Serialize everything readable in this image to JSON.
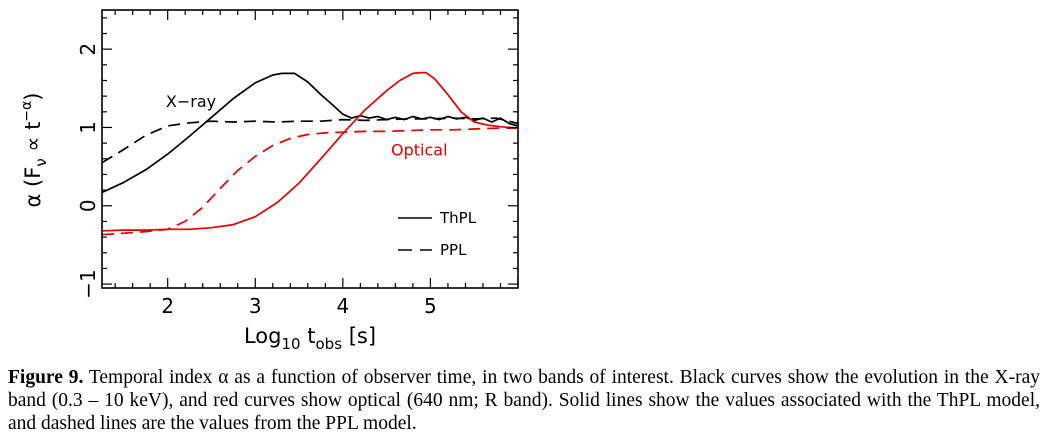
{
  "chart_data": {
    "type": "line",
    "xlabel_parts": {
      "pre": "Log",
      "sub1": "10",
      "mid": " t",
      "sub2": "obs",
      "post": " [s]"
    },
    "ylabel_parts": {
      "pre": "α (F",
      "sub": "ν",
      "mid": " ∝ t",
      "sup": "−α",
      "post": ")"
    },
    "xlim": [
      1.25,
      6.0
    ],
    "ylim": [
      -1.05,
      2.5
    ],
    "x_ticks": [
      2,
      3,
      4,
      5
    ],
    "y_ticks": [
      -1,
      0,
      1,
      2
    ],
    "x_tick_labels": [
      "2",
      "3",
      "4",
      "5"
    ],
    "y_tick_labels": [
      "−1",
      "0",
      "1",
      "2"
    ],
    "grid": false,
    "legend": {
      "placement": "lower-right",
      "entries": [
        {
          "label": "ThPL",
          "style": "solid"
        },
        {
          "label": "PPL",
          "style": "dashed"
        }
      ]
    },
    "annotations": [
      {
        "text": "X−ray",
        "color": "#000000",
        "x": 1.98,
        "y": 1.26
      },
      {
        "text": "Optical",
        "color": "#e00000",
        "x": 4.55,
        "y": 0.64
      }
    ],
    "series": [
      {
        "band": "X-ray",
        "model": "ThPL",
        "color": "#000000",
        "dash": "solid",
        "x": [
          1.25,
          1.5,
          1.75,
          2.0,
          2.25,
          2.5,
          2.75,
          3.0,
          3.2,
          3.3,
          3.45,
          3.6,
          3.75,
          3.9,
          4.0,
          4.1,
          4.2,
          4.3,
          4.4,
          4.5,
          4.6,
          4.7,
          4.8,
          4.9,
          5.0,
          5.1,
          5.2,
          5.3,
          5.4,
          5.5,
          5.6,
          5.7,
          5.8,
          5.9,
          6.0
        ],
        "y": [
          0.17,
          0.3,
          0.46,
          0.66,
          0.89,
          1.13,
          1.37,
          1.57,
          1.67,
          1.69,
          1.69,
          1.58,
          1.42,
          1.27,
          1.17,
          1.12,
          1.15,
          1.12,
          1.14,
          1.1,
          1.13,
          1.1,
          1.14,
          1.11,
          1.13,
          1.1,
          1.14,
          1.11,
          1.13,
          1.09,
          1.12,
          1.07,
          1.12,
          1.05,
          1.02
        ]
      },
      {
        "band": "X-ray",
        "model": "PPL",
        "color": "#000000",
        "dash": "dashed",
        "x": [
          1.25,
          1.5,
          1.75,
          2.0,
          2.25,
          2.5,
          2.75,
          3.0,
          3.25,
          3.5,
          3.75,
          4.0,
          4.25,
          4.5,
          4.75,
          5.0,
          5.25,
          5.5,
          5.75,
          6.0
        ],
        "y": [
          0.55,
          0.72,
          0.9,
          1.02,
          1.06,
          1.08,
          1.07,
          1.08,
          1.07,
          1.08,
          1.08,
          1.1,
          1.09,
          1.1,
          1.11,
          1.11,
          1.12,
          1.11,
          1.12,
          1.05
        ]
      },
      {
        "band": "Optical",
        "model": "ThPL",
        "color": "#e00000",
        "dash": "solid",
        "x": [
          1.25,
          1.5,
          1.75,
          2.0,
          2.25,
          2.5,
          2.75,
          3.0,
          3.25,
          3.5,
          3.75,
          4.0,
          4.25,
          4.5,
          4.65,
          4.8,
          4.9,
          4.95,
          5.05,
          5.2,
          5.35,
          5.5,
          5.65,
          5.8,
          6.0
        ],
        "y": [
          -0.32,
          -0.31,
          -0.31,
          -0.3,
          -0.3,
          -0.28,
          -0.24,
          -0.14,
          0.04,
          0.29,
          0.6,
          0.92,
          1.22,
          1.47,
          1.6,
          1.69,
          1.7,
          1.7,
          1.62,
          1.42,
          1.2,
          1.07,
          1.03,
          1.01,
          0.99
        ]
      },
      {
        "band": "Optical",
        "model": "PPL",
        "color": "#e00000",
        "dash": "dashed",
        "x": [
          1.25,
          1.5,
          1.75,
          2.0,
          2.2,
          2.4,
          2.6,
          2.8,
          3.0,
          3.2,
          3.4,
          3.6,
          3.8,
          4.0,
          4.25,
          4.5,
          4.75,
          5.0,
          5.25,
          5.5,
          5.75,
          6.0
        ],
        "y": [
          -0.37,
          -0.35,
          -0.33,
          -0.3,
          -0.2,
          -0.02,
          0.22,
          0.45,
          0.63,
          0.77,
          0.86,
          0.91,
          0.93,
          0.94,
          0.95,
          0.95,
          0.96,
          0.97,
          0.97,
          0.98,
          0.99,
          0.99
        ]
      }
    ]
  },
  "caption": {
    "label": "Figure 9.",
    "text": " Temporal index α as a function of observer time, in two bands of interest. Black curves show the evolution in the X-ray band (0.3 – 10 keV), and red curves show optical (640 nm; R band). Solid lines show the values associated with the ThPL model, and dashed lines are the values from the PPL model."
  }
}
